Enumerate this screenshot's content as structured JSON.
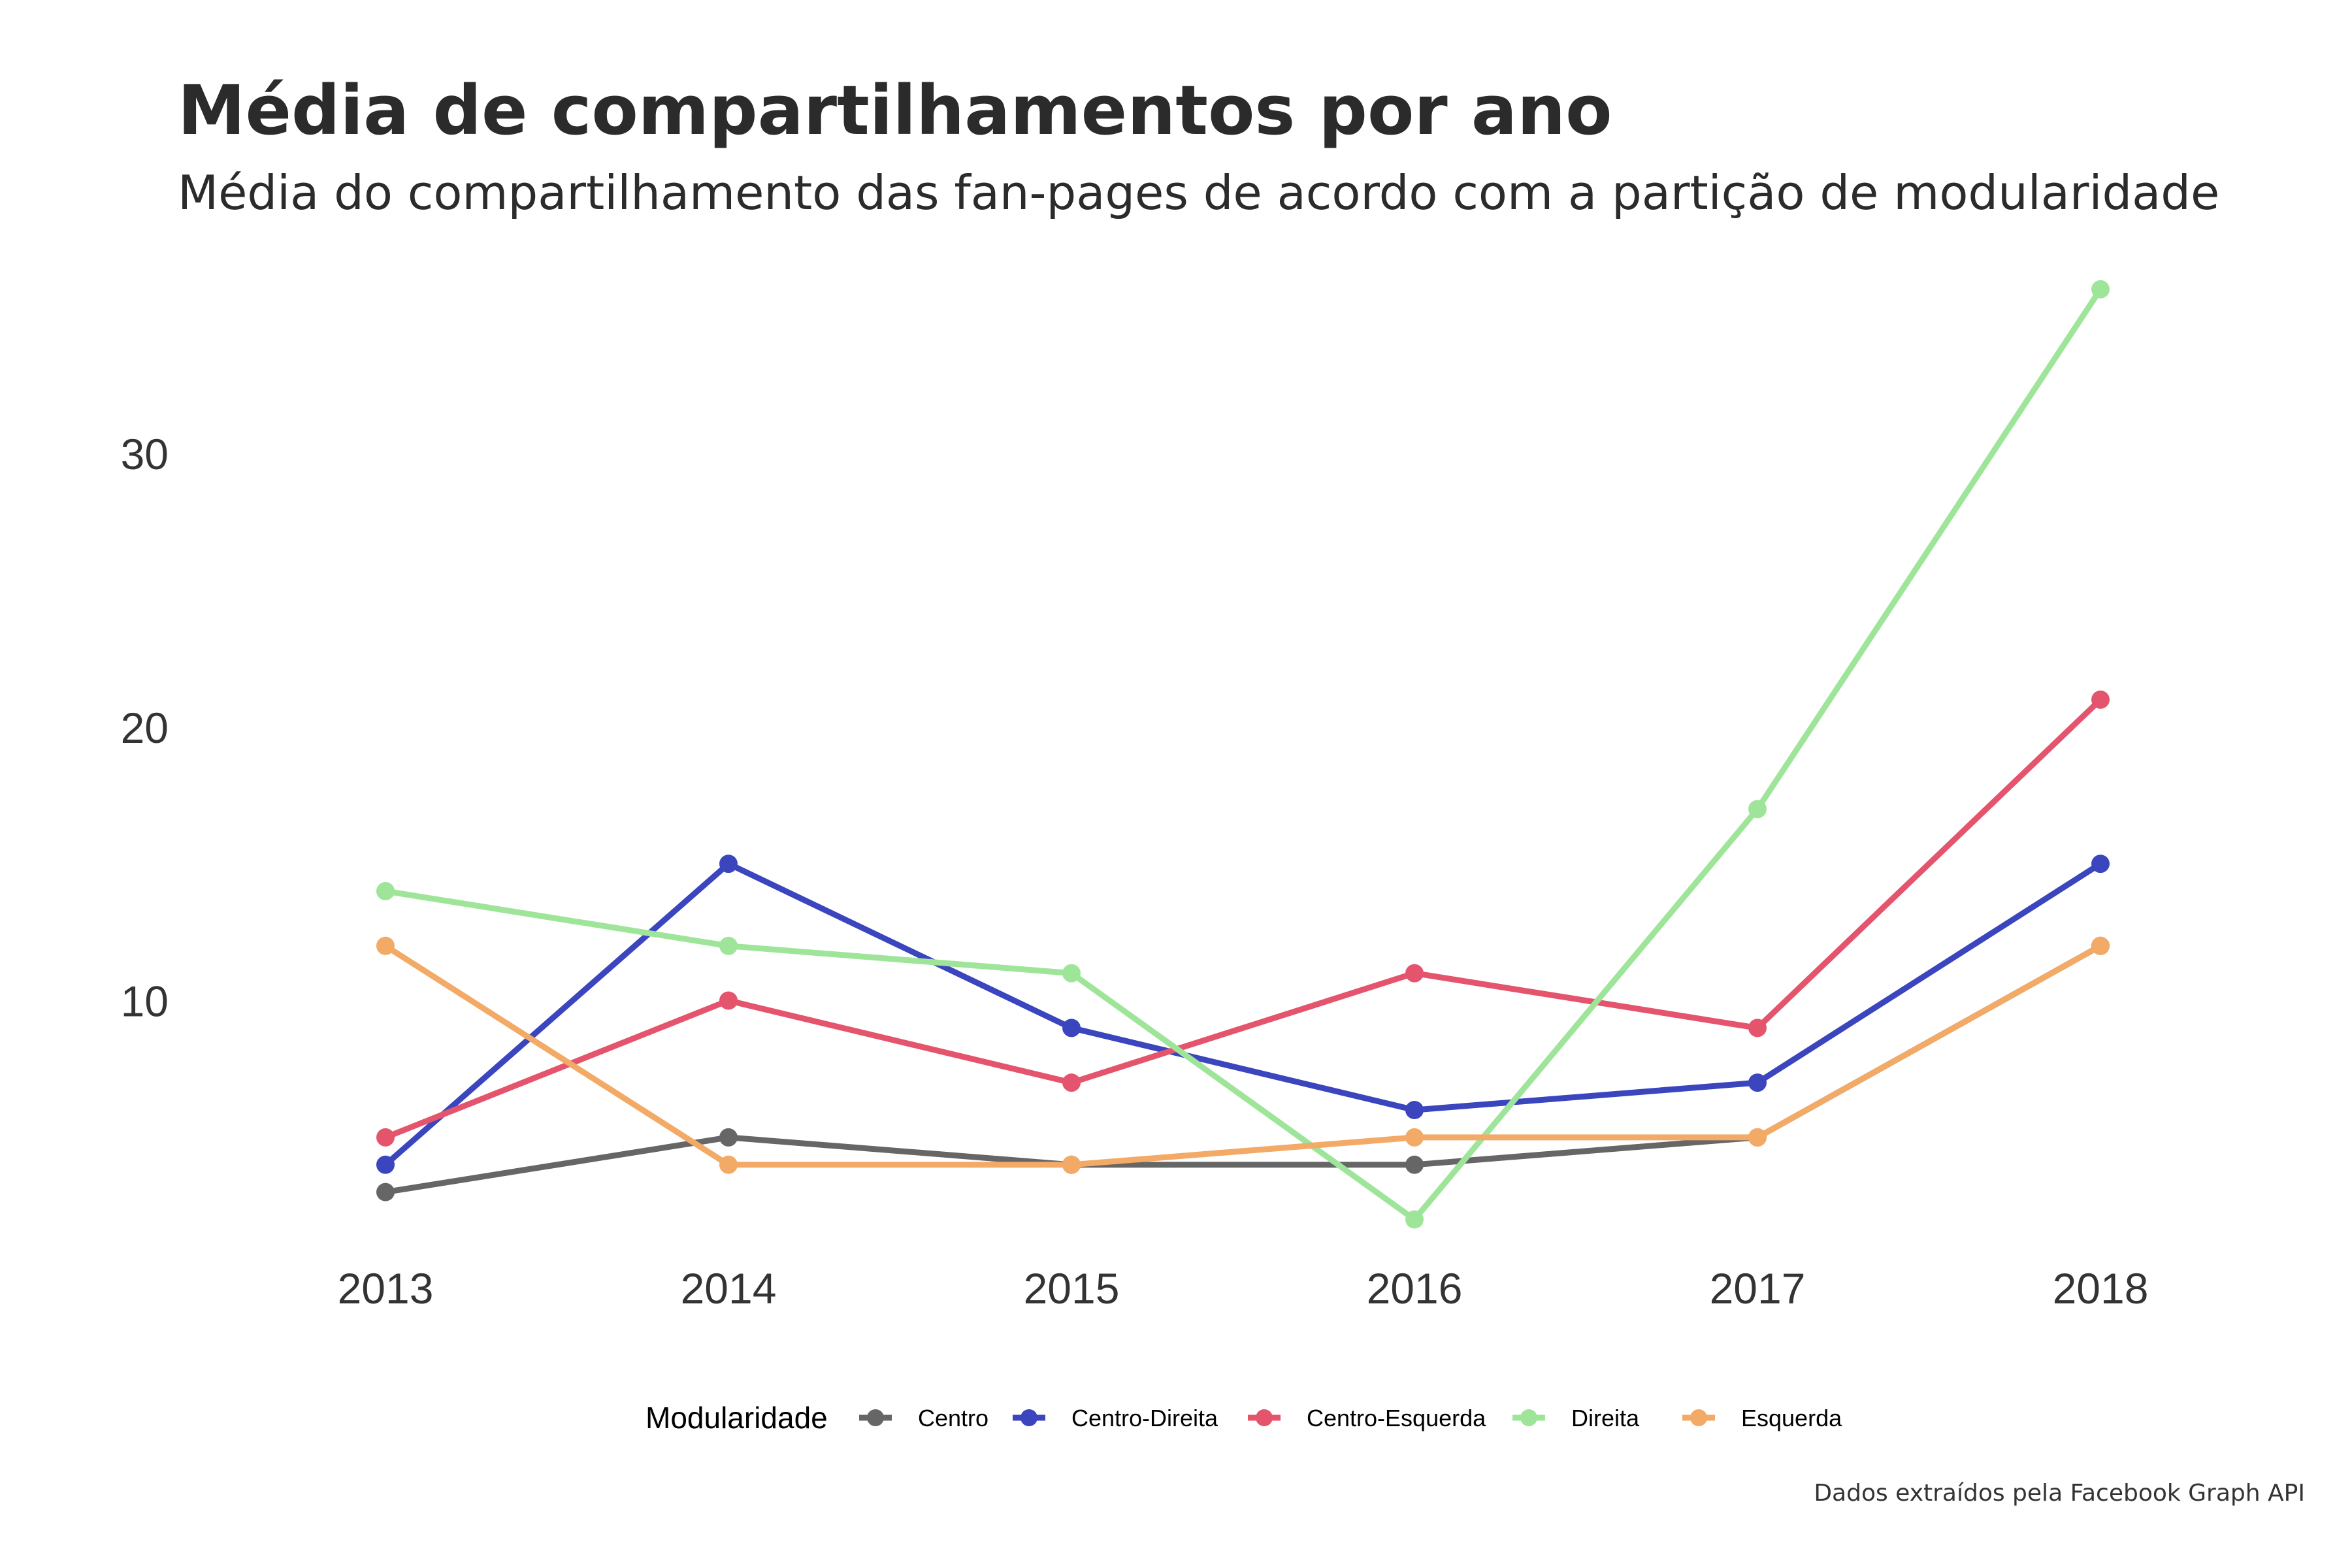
{
  "chart_data": {
    "type": "line",
    "title": "Média de compartilhamentos por ano",
    "subtitle": "Média do compartilhamento das fan-pages de acordo com a partição de modularidade",
    "caption": "Dados extraídos pela Facebook Graph API",
    "xlabel": "",
    "ylabel": "",
    "x": [
      "2013",
      "2014",
      "2015",
      "2016",
      "2017",
      "2018"
    ],
    "y_ticks": [
      10,
      20,
      30
    ],
    "ylim": [
      1.2,
      37.5
    ],
    "grid": false,
    "legend_title": "Modularidade",
    "legend_position": "bottom",
    "series": [
      {
        "name": "Centro",
        "color": "#666666",
        "values": [
          3,
          5,
          4,
          4,
          5,
          12
        ]
      },
      {
        "name": "Centro-Direita",
        "color": "#3A45BE",
        "values": [
          4,
          15,
          9,
          6,
          7,
          15
        ]
      },
      {
        "name": "Centro-Esquerda",
        "color": "#E5546D",
        "values": [
          5,
          10,
          7,
          11,
          9,
          21
        ]
      },
      {
        "name": "Direita",
        "color": "#9EE59A",
        "values": [
          14,
          12,
          11,
          2,
          17,
          36
        ]
      },
      {
        "name": "Esquerda",
        "color": "#F2AA66",
        "values": [
          12,
          4,
          4,
          5,
          5,
          12
        ]
      }
    ]
  }
}
